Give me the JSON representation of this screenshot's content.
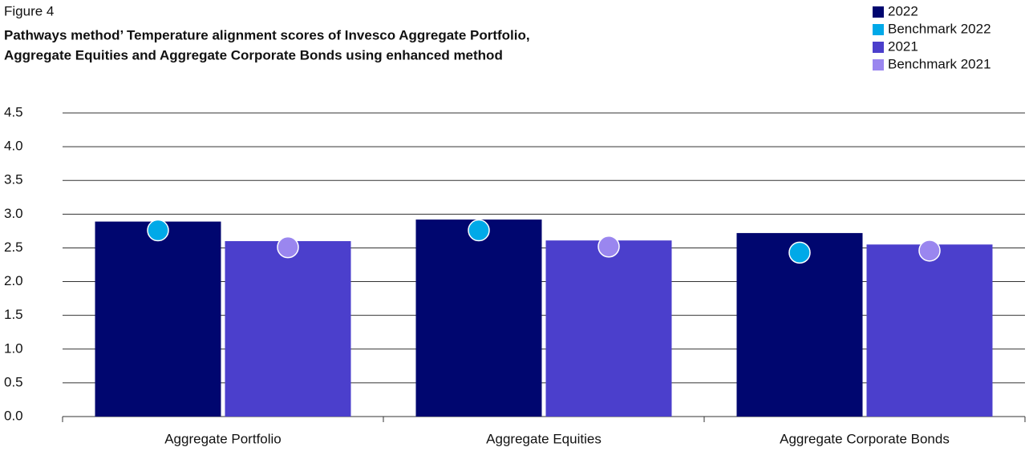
{
  "chart_data": {
    "type": "bar",
    "figure_label": "Figure 4",
    "title": [
      "Pathways method’ Temperature alignment scores of Invesco Aggregate Portfolio,",
      "Aggregate Equities and Aggregate Corporate Bonds using enhanced method"
    ],
    "categories": [
      "Aggregate Portfolio",
      "Aggregate Equities",
      "Aggregate Corporate Bonds"
    ],
    "series": [
      {
        "name": "2022",
        "type": "bar",
        "color": "#00066f",
        "values": [
          2.89,
          2.92,
          2.72
        ]
      },
      {
        "name": "Benchmark 2022",
        "type": "scatter",
        "color": "#00a9e8",
        "values": [
          2.76,
          2.76,
          2.43
        ]
      },
      {
        "name": "2021",
        "type": "bar",
        "color": "#4b3fcc",
        "values": [
          2.6,
          2.61,
          2.55
        ]
      },
      {
        "name": "Benchmark 2021",
        "type": "scatter",
        "color": "#9a86ef",
        "values": [
          2.51,
          2.52,
          2.46
        ]
      }
    ],
    "ylim": [
      0,
      4.5
    ],
    "yticks": [
      {
        "value": 0,
        "label": "0.0"
      },
      0.5,
      {
        "value": 1,
        "label": "1.0"
      },
      1.5,
      {
        "value": 2,
        "label": "2.0"
      },
      2.5,
      {
        "value": 3,
        "label": "3.0"
      },
      3.5,
      {
        "value": 4,
        "label": "4.0"
      },
      4.5
    ],
    "grid": true,
    "legend": "top-right"
  }
}
